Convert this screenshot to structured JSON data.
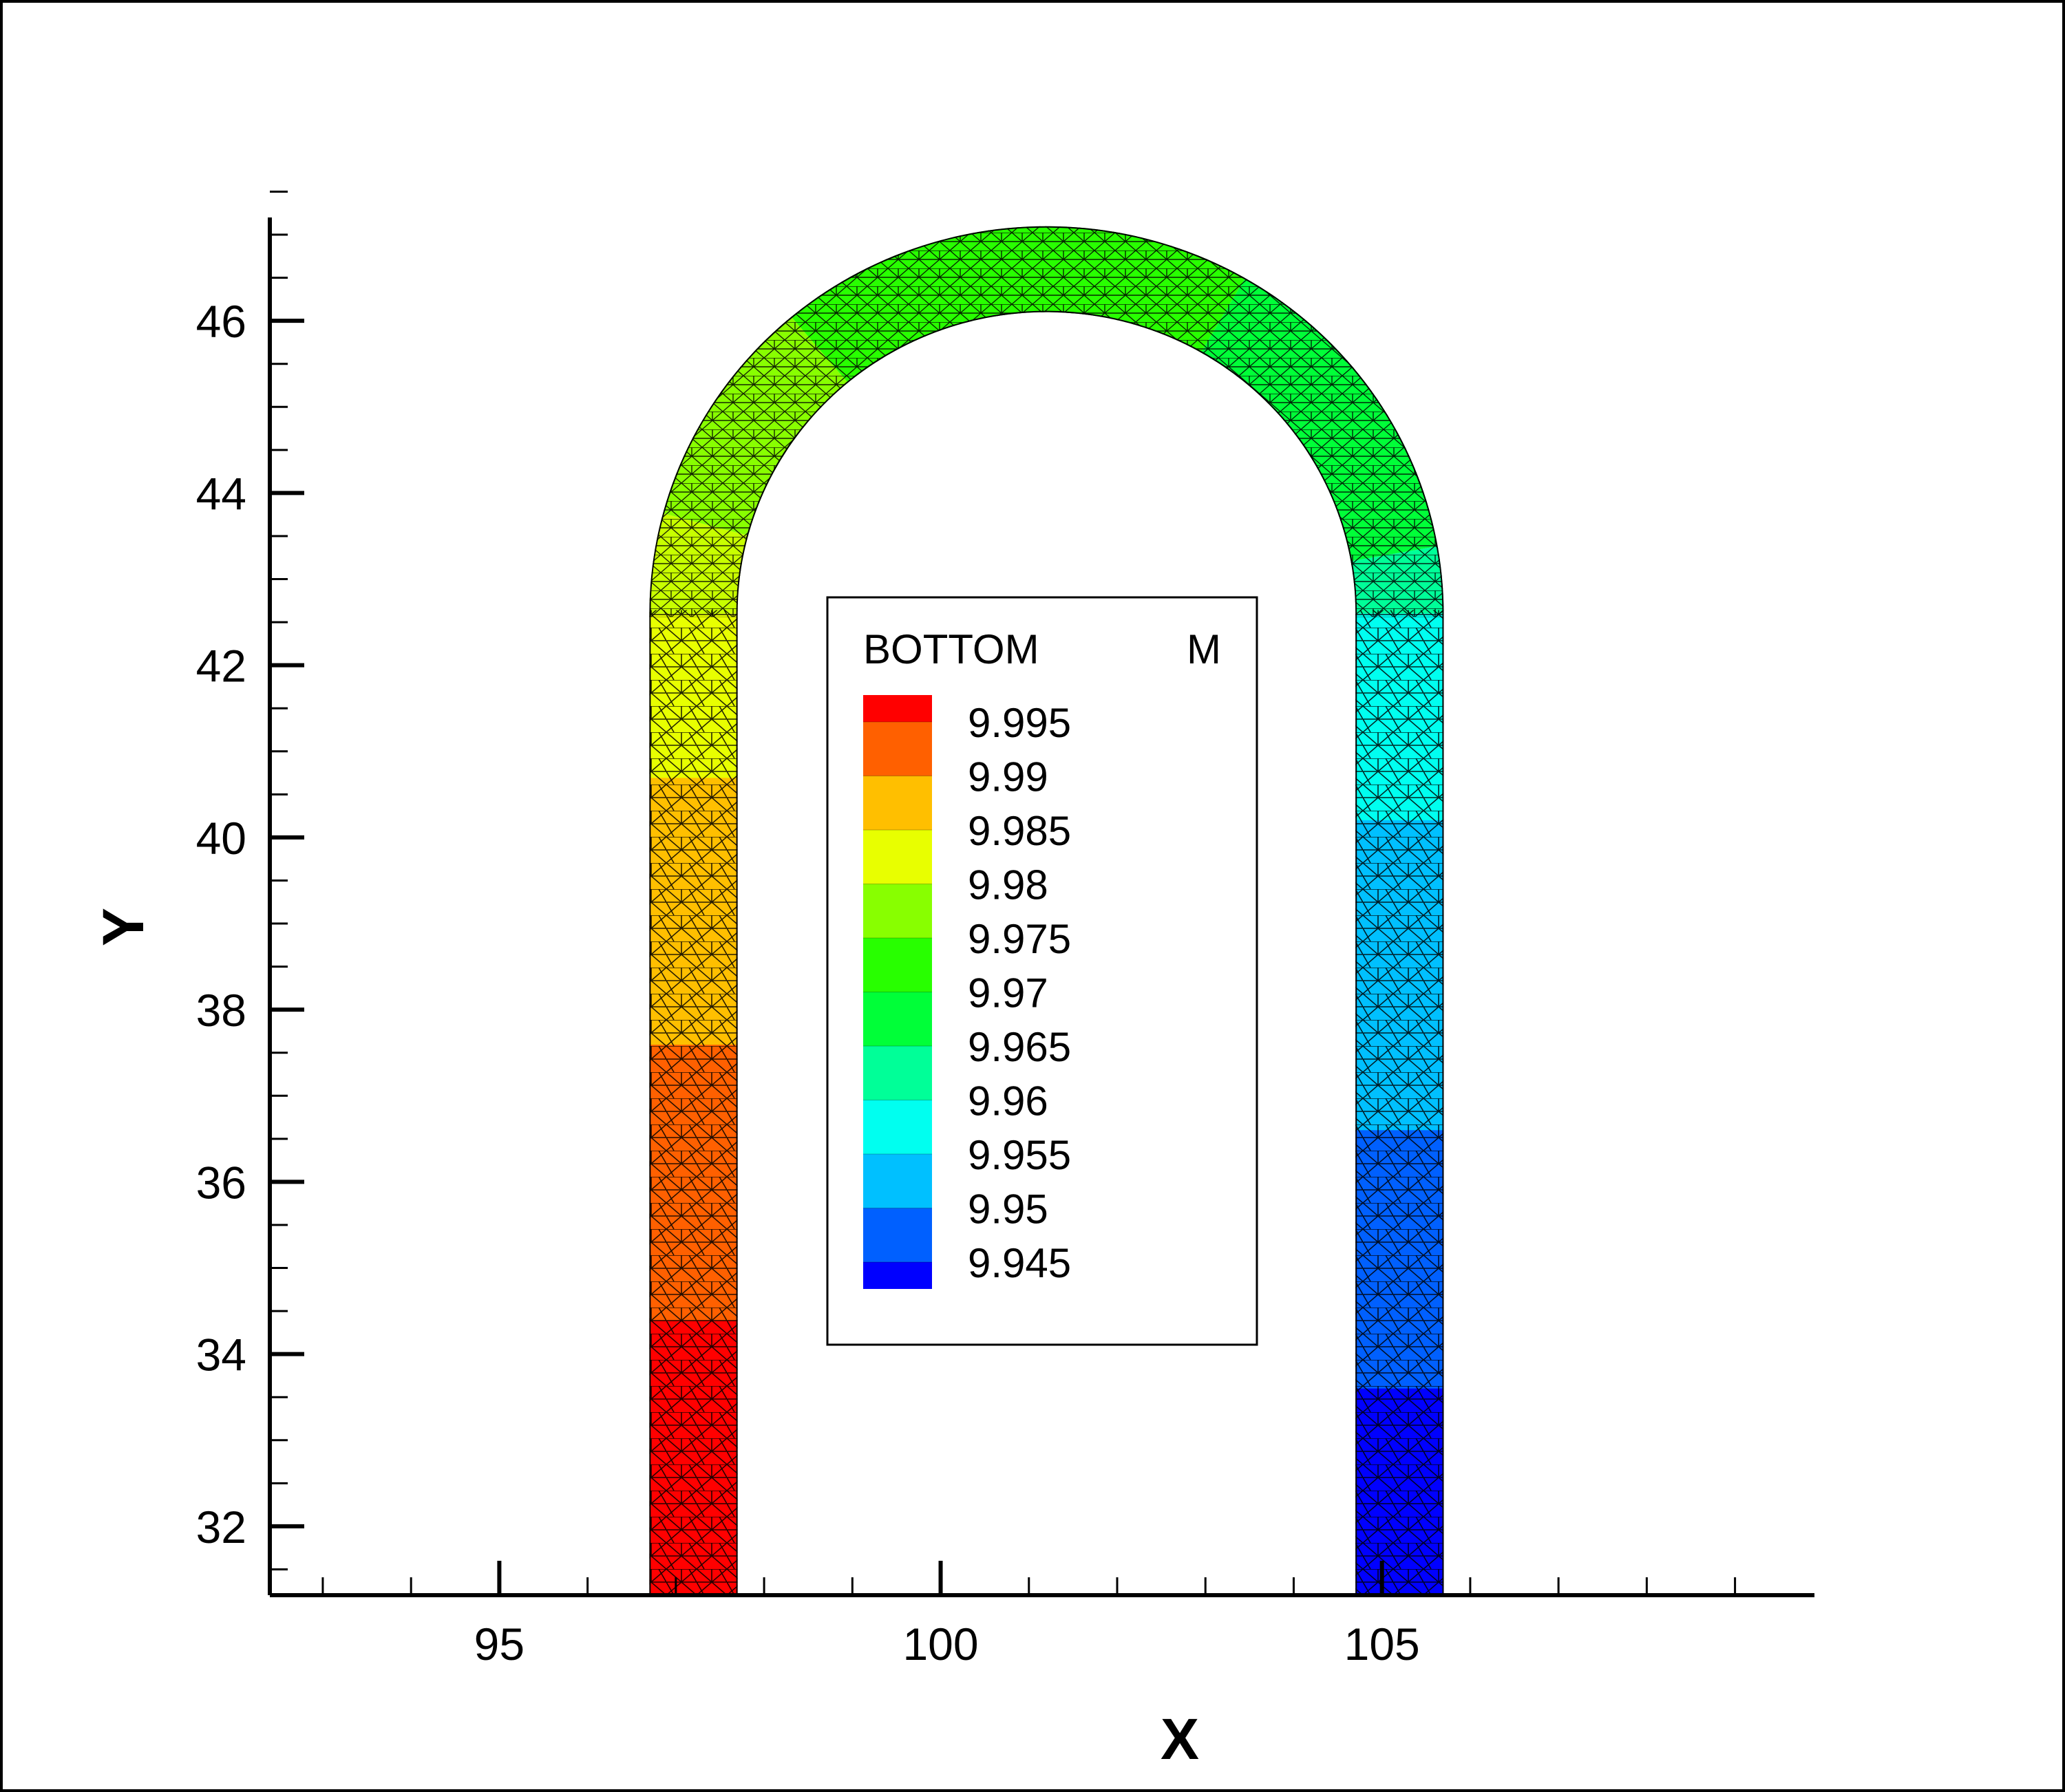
{
  "chart_data": {
    "type": "contour",
    "xlabel": "X",
    "ylabel": "Y",
    "xlim": [
      92.4,
      109.9
    ],
    "ylim": [
      31.2,
      47.2
    ],
    "x_ticks": [
      "95",
      "100",
      "105"
    ],
    "x_tick_values": [
      95,
      100,
      105
    ],
    "y_ticks": [
      "32",
      "34",
      "36",
      "38",
      "40",
      "42",
      "44",
      "46"
    ],
    "y_tick_values": [
      32,
      34,
      36,
      38,
      40,
      42,
      44,
      46
    ],
    "grid": false,
    "mesh": "triangular",
    "geometry": {
      "channel_width": 1.0,
      "left_leg_x": [
        96.7,
        97.7
      ],
      "right_leg_x": [
        104.7,
        105.7
      ],
      "arc_center": [
        101.2,
        42.6
      ],
      "outer_radius": 4.5,
      "inner_radius": 3.5,
      "bottom_y": 31.2
    },
    "legend": {
      "variable": "BOTTOM",
      "unit": "M",
      "placement": "center",
      "levels": [
        {
          "value": "9.995",
          "color": "#ff0000"
        },
        {
          "value": "9.99",
          "color": "#ff6000"
        },
        {
          "value": "9.985",
          "color": "#ffbf00"
        },
        {
          "value": "9.98",
          "color": "#e8ff00"
        },
        {
          "value": "9.975",
          "color": "#88ff00"
        },
        {
          "value": "9.97",
          "color": "#28ff00"
        },
        {
          "value": "9.965",
          "color": "#00ff38"
        },
        {
          "value": "9.96",
          "color": "#00ff98"
        },
        {
          "value": "9.955",
          "color": "#00fff0"
        },
        {
          "value": "9.95",
          "color": "#00c0ff"
        },
        {
          "value": "9.945",
          "color": "#0060ff"
        },
        {
          "value": "",
          "color": "#0000ff"
        }
      ]
    },
    "field_bands": [
      {
        "region": "left-leg",
        "y_from": 31.2,
        "y_to": 34.4,
        "color": "#ff0000"
      },
      {
        "region": "left-leg",
        "y_from": 34.4,
        "y_to": 37.6,
        "color": "#ff6000"
      },
      {
        "region": "left-leg",
        "y_from": 37.6,
        "y_to": 40.7,
        "color": "#ffbf00"
      },
      {
        "region": "left-leg",
        "y_from": 40.7,
        "y_to": 42.6,
        "color": "#e8ff00"
      },
      {
        "region": "arc",
        "angle_from": 180,
        "angle_to": 165,
        "color": "#c8ff00"
      },
      {
        "region": "arc",
        "angle_from": 165,
        "angle_to": 130,
        "color": "#88ff00"
      },
      {
        "region": "arc",
        "angle_from": 130,
        "angle_to": 60,
        "color": "#28ff00"
      },
      {
        "region": "arc",
        "angle_from": 60,
        "angle_to": 10,
        "color": "#00ff38"
      },
      {
        "region": "arc",
        "angle_from": 10,
        "angle_to": 0,
        "color": "#00ff98"
      },
      {
        "region": "right-leg",
        "y_from": 40.2,
        "y_to": 42.6,
        "color": "#00fff0"
      },
      {
        "region": "right-leg",
        "y_from": 36.6,
        "y_to": 40.2,
        "color": "#00c0ff"
      },
      {
        "region": "right-leg",
        "y_from": 33.6,
        "y_to": 36.6,
        "color": "#0060ff"
      },
      {
        "region": "right-leg",
        "y_from": 31.2,
        "y_to": 33.6,
        "color": "#0000ff"
      }
    ]
  }
}
